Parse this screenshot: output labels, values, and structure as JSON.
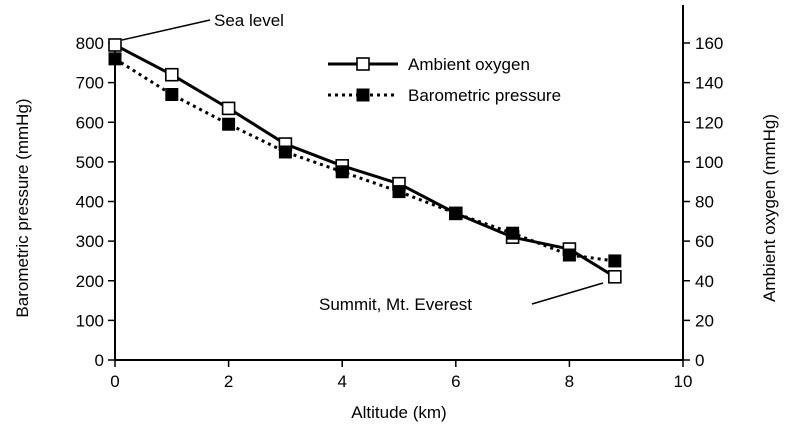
{
  "chart_data": {
    "type": "line",
    "xlabel": "Altitude (km)",
    "ylabel_left": "Barometric pressure (mmHg)",
    "ylabel_right": "Ambient oxygen (mmHg)",
    "xlim": [
      0,
      10
    ],
    "ylim_left": [
      0,
      800
    ],
    "ylim_right": [
      0,
      160
    ],
    "x_ticks": [
      "0",
      "2",
      "4",
      "6",
      "8",
      "10"
    ],
    "y_left_ticks": [
      "0",
      "100",
      "200",
      "300",
      "400",
      "500",
      "600",
      "700",
      "800"
    ],
    "y_right_ticks": [
      "0",
      "20",
      "40",
      "60",
      "80",
      "100",
      "120",
      "140",
      "160"
    ],
    "grid": false,
    "legend_position": "top-right",
    "series": [
      {
        "name": "Ambient oxygen",
        "axis": "right",
        "marker": "open-square",
        "line": "solid",
        "color": "#000000",
        "x": [
          0,
          1,
          2,
          3,
          4,
          5,
          6,
          7,
          8,
          8.8
        ],
        "y": [
          159,
          144,
          127,
          109,
          98,
          89,
          74,
          62,
          56,
          42
        ]
      },
      {
        "name": "Barometric pressure",
        "axis": "left",
        "marker": "filled-square",
        "line": "dotted",
        "color": "#000000",
        "x": [
          0,
          1,
          2,
          3,
          4,
          5,
          6,
          7,
          8,
          8.8
        ],
        "y": [
          760,
          670,
          595,
          525,
          475,
          425,
          370,
          320,
          265,
          250
        ]
      }
    ],
    "annotations": [
      {
        "text": "Sea level",
        "x": 0,
        "y": 795,
        "axis": "left"
      },
      {
        "text": "Summit, Mt. Everest",
        "x": 8.8,
        "y": 210,
        "axis": "left"
      }
    ]
  }
}
